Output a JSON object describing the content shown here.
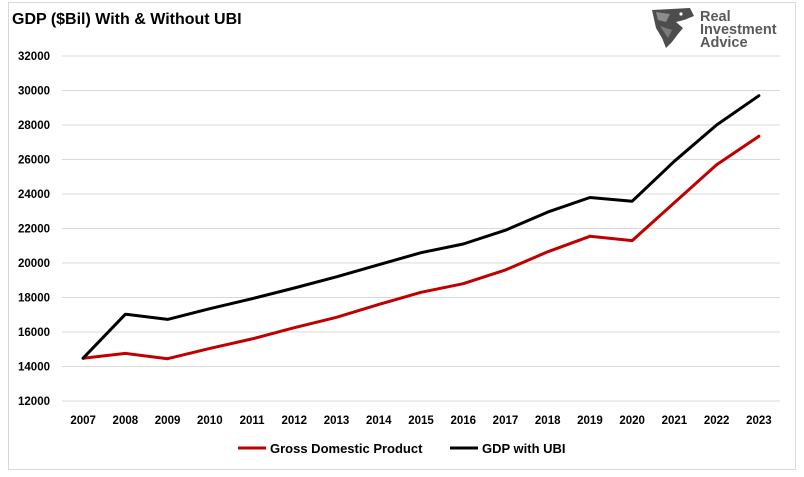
{
  "chart_data": {
    "type": "line",
    "title": "GDP ($Bil) With & Without UBI",
    "x": [
      "2007",
      "2008",
      "2009",
      "2010",
      "2011",
      "2012",
      "2013",
      "2014",
      "2015",
      "2016",
      "2017",
      "2018",
      "2019",
      "2020",
      "2021",
      "2022",
      "2023"
    ],
    "ylim": [
      12000,
      32000
    ],
    "yticks": [
      12000,
      14000,
      16000,
      18000,
      20000,
      22000,
      24000,
      26000,
      28000,
      30000,
      32000
    ],
    "grid": true,
    "legend_position": "bottom",
    "series": [
      {
        "name": "Gross Domestic Product",
        "color": "#c00000",
        "values": [
          14480,
          14760,
          14450,
          15050,
          15600,
          16250,
          16850,
          17600,
          18300,
          18800,
          19600,
          20650,
          21550,
          21300,
          23500,
          25700,
          27350
        ]
      },
      {
        "name": "GDP with UBI",
        "color": "#000000",
        "values": [
          14480,
          17030,
          16730,
          17350,
          17930,
          18550,
          19200,
          19900,
          20600,
          21100,
          21900,
          22950,
          23800,
          23580,
          25900,
          28000,
          29700
        ]
      }
    ]
  },
  "logo": {
    "line1": "Real",
    "line2": "Investment",
    "line3": "Advice",
    "icon": "eagle-head-icon"
  }
}
